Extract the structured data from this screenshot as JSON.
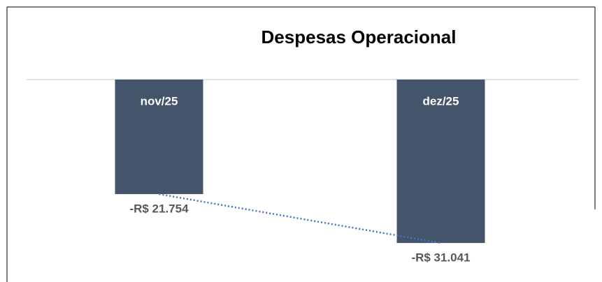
{
  "chart_data": {
    "type": "bar",
    "title": "Despesas Operacional",
    "categories": [
      "nov/25",
      "dez/25"
    ],
    "values": [
      -21754,
      -31041
    ],
    "value_labels": [
      "-R$ 21.754",
      "-R$ 31.041"
    ],
    "color": "#44546a",
    "trendline_color": "#4472c4",
    "ylim": [
      -35000,
      0
    ]
  }
}
